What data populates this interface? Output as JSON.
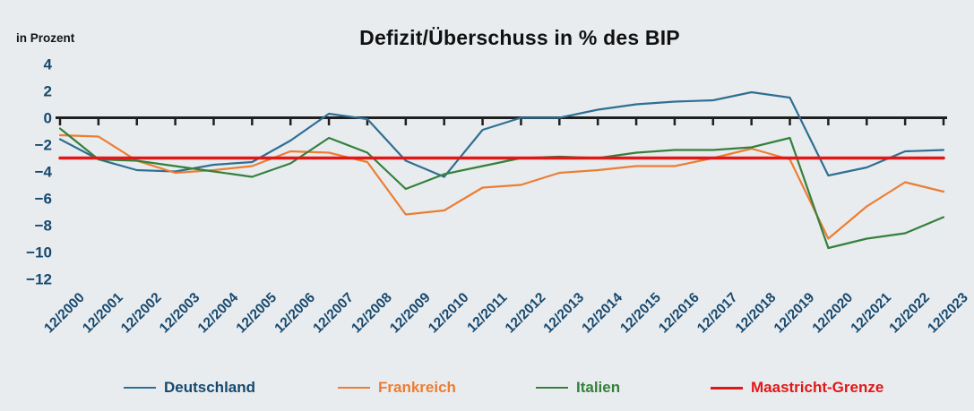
{
  "page": {
    "background": "#e8ecef"
  },
  "header": {
    "unit_label": "in Prozent",
    "title": "Defizit/Überschuss in % des BIP"
  },
  "colors": {
    "background": "#e8ecef",
    "axis": "#1f1f1f",
    "tick_text": "#17496e",
    "deutschland": "#2f6f92",
    "frankreich": "#ed7d31",
    "italien": "#35803b",
    "maastricht": "#e21717"
  },
  "chart_data": {
    "type": "line",
    "title": "Defizit/Überschuss in % des BIP",
    "ylabel": "in Prozent",
    "xlabel": "",
    "grid": false,
    "legend_position": "bottom",
    "axis_range_y": [
      -12,
      4
    ],
    "y_tick_values": [
      4,
      2,
      0,
      -2,
      -4,
      -6,
      -8,
      -10,
      -12
    ],
    "y_tick_labels": [
      "4",
      "2",
      "0",
      "−2",
      "−4",
      "−6",
      "−8",
      "−10",
      "−12"
    ],
    "x": [
      "12/2000",
      "12/2001",
      "12/2002",
      "12/2003",
      "12/2004",
      "12/2005",
      "12/2006",
      "12/2007",
      "12/2008",
      "12/2009",
      "12/2010",
      "12/2011",
      "12/2012",
      "12/2013",
      "12/2014",
      "12/2015",
      "12/2016",
      "12/2017",
      "12/2018",
      "12/2019",
      "12/2020",
      "12/2021",
      "12/2022",
      "12/2023"
    ],
    "series": [
      {
        "name": "Deutschland",
        "color": "#2f6f92",
        "values": [
          -1.6,
          -3.1,
          -3.9,
          -4.0,
          -3.5,
          -3.3,
          -1.7,
          0.3,
          -0.1,
          -3.2,
          -4.4,
          -0.9,
          0.0,
          0.0,
          0.6,
          1.0,
          1.2,
          1.3,
          1.9,
          1.5,
          -4.3,
          -3.7,
          -2.5,
          -2.4
        ]
      },
      {
        "name": "Frankreich",
        "color": "#ed7d31",
        "values": [
          -1.3,
          -1.4,
          -3.2,
          -4.1,
          -3.9,
          -3.6,
          -2.5,
          -2.6,
          -3.3,
          -7.2,
          -6.9,
          -5.2,
          -5.0,
          -4.1,
          -3.9,
          -3.6,
          -3.6,
          -3.0,
          -2.3,
          -3.1,
          -9.0,
          -6.6,
          -4.8,
          -5.5
        ]
      },
      {
        "name": "Italien",
        "color": "#35803b",
        "values": [
          -0.8,
          -3.1,
          -3.2,
          -3.6,
          -4.0,
          -4.4,
          -3.4,
          -1.5,
          -2.6,
          -5.3,
          -4.2,
          -3.6,
          -3.0,
          -2.9,
          -3.0,
          -2.6,
          -2.4,
          -2.4,
          -2.2,
          -1.5,
          -9.7,
          -9.0,
          -8.6,
          -7.4
        ]
      },
      {
        "name": "Maastricht-Grenze",
        "color": "#e21717",
        "values": [
          -3,
          -3,
          -3,
          -3,
          -3,
          -3,
          -3,
          -3,
          -3,
          -3,
          -3,
          -3,
          -3,
          -3,
          -3,
          -3,
          -3,
          -3,
          -3,
          -3,
          -3,
          -3,
          -3,
          -3
        ]
      }
    ]
  },
  "legend": {
    "items": [
      {
        "label": "Deutschland",
        "line_color": "#2f6f92",
        "text_color": "#17496e"
      },
      {
        "label": "Frankreich",
        "line_color": "#ed7d31",
        "text_color": "#ed7d31"
      },
      {
        "label": "Italien",
        "line_color": "#35803b",
        "text_color": "#35803b"
      },
      {
        "label": "Maastricht-Grenze",
        "line_color": "#e21717",
        "text_color": "#e21717"
      }
    ]
  }
}
